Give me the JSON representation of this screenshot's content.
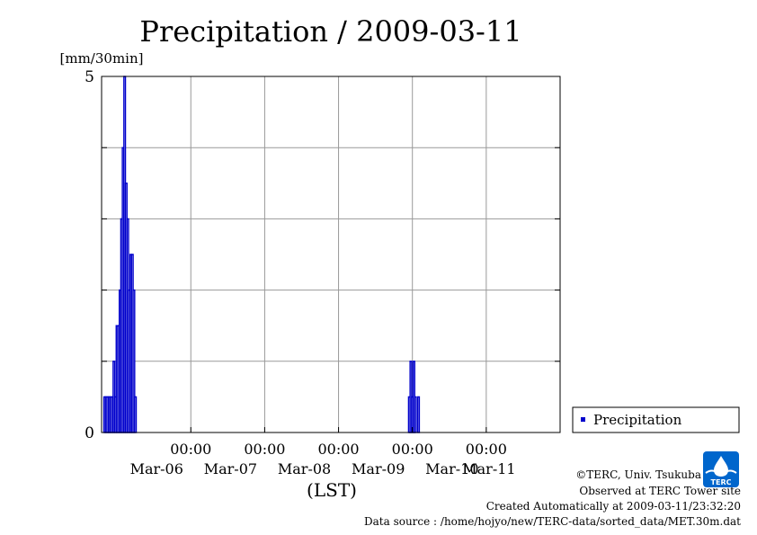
{
  "chart_data": {
    "type": "bar",
    "title": "Precipitation / 2009-03-11",
    "ylabel": "[mm/30min]",
    "xlabel": "(LST)",
    "ylim": [
      0,
      5
    ],
    "y_ticks": [
      "0",
      "5"
    ],
    "xlim": [
      "2009-03-05 19:00",
      "2009-03-11 24:00"
    ],
    "x_ticks": [
      {
        "at": "2009-03-06 24:00",
        "time": "00:00",
        "date": "Mar-06"
      },
      {
        "at": "2009-03-07 24:00",
        "time": "00:00",
        "date": "Mar-07"
      },
      {
        "at": "2009-03-08 24:00",
        "time": "00:00",
        "date": "Mar-08"
      },
      {
        "at": "2009-03-09 24:00",
        "time": "00:00",
        "date": "Mar-09"
      },
      {
        "at": "2009-03-10 24:00",
        "time": "00:00",
        "date": "Mar-10"
      }
    ],
    "x_extra_date_labels": [
      {
        "at": "2009-03-11 12:00",
        "date": "Mar-11"
      }
    ],
    "grid": true,
    "legend": "right",
    "series": [
      {
        "name": "Precipitation",
        "color": "#0000cc",
        "points": [
          [
            "2009-03-05 20:00",
            0.5
          ],
          [
            "2009-03-05 20:30",
            0.5
          ],
          [
            "2009-03-05 21:00",
            0.5
          ],
          [
            "2009-03-05 21:30",
            0.5
          ],
          [
            "2009-03-05 22:00",
            0.5
          ],
          [
            "2009-03-05 22:30",
            0.5
          ],
          [
            "2009-03-05 23:00",
            1.0
          ],
          [
            "2009-03-05 23:30",
            0.5
          ],
          [
            "2009-03-06 00:00",
            1.5
          ],
          [
            "2009-03-06 00:30",
            1.5
          ],
          [
            "2009-03-06 01:00",
            2.0
          ],
          [
            "2009-03-06 01:30",
            3.0
          ],
          [
            "2009-03-06 02:00",
            4.0
          ],
          [
            "2009-03-06 02:30",
            5.0
          ],
          [
            "2009-03-06 03:00",
            3.5
          ],
          [
            "2009-03-06 03:30",
            3.0
          ],
          [
            "2009-03-06 04:00",
            2.0
          ],
          [
            "2009-03-06 04:30",
            2.5
          ],
          [
            "2009-03-06 05:00",
            2.5
          ],
          [
            "2009-03-06 05:30",
            2.0
          ],
          [
            "2009-03-06 06:00",
            0.5
          ],
          [
            "2009-03-09 23:00",
            0.5
          ],
          [
            "2009-03-09 23:30",
            1.0
          ],
          [
            "2009-03-10 00:00",
            0.5
          ],
          [
            "2009-03-10 00:30",
            1.0
          ],
          [
            "2009-03-10 01:00",
            0.5
          ],
          [
            "2009-03-10 02:00",
            0.5
          ]
        ]
      }
    ]
  },
  "legend": {
    "label": "Precipitation"
  },
  "credits": {
    "copyright": "©TERC, Univ. Tsukuba",
    "site": "Observed at TERC Tower site",
    "created": "Created Automatically at 2009-03-11/23:32:20",
    "source": "Data source : /home/hojyo/new/TERC-data/sorted_data/MET.30m.dat"
  },
  "logo": {
    "text": "TERC",
    "icon": "water-drop-icon",
    "color": "#0066cc"
  }
}
